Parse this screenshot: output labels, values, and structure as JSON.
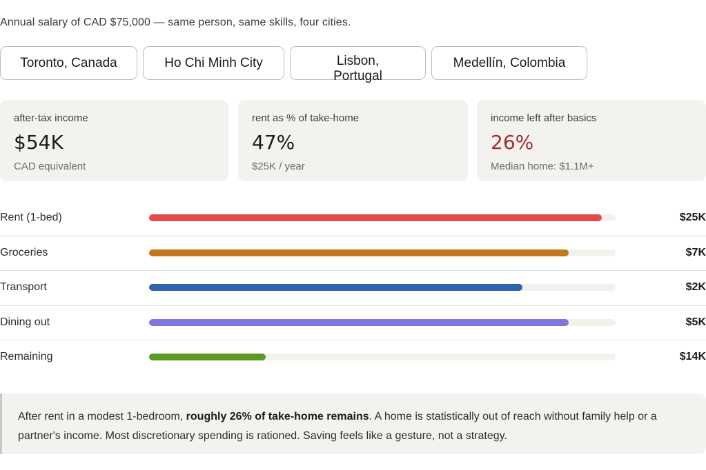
{
  "intro": "Annual salary of CAD $75,000 — same person, same skills, four cities.",
  "cities": [
    {
      "label": "Toronto, Canada"
    },
    {
      "label": "Ho Chi Minh City"
    },
    {
      "label": "Lisbon, Portugal"
    },
    {
      "label": "Medellín, Colombia"
    }
  ],
  "stats": [
    {
      "label": "after-tax income",
      "value": "$54K",
      "sub": "CAD equivalent"
    },
    {
      "label": "rent as % of take-home",
      "value": "47%",
      "sub": "$25K / year"
    },
    {
      "label": "income left after basics",
      "value": "26%",
      "sub": "Median home: $1.1M+",
      "value_color": "#a32d2d"
    }
  ],
  "breakdown": [
    {
      "label": "Rent (1-bed)",
      "value": "$25K",
      "fill": 0.97,
      "color": "#e24b4a"
    },
    {
      "label": "Groceries",
      "value": "$7K",
      "fill": 0.9,
      "color": "#c2771a"
    },
    {
      "label": "Transport",
      "value": "$2K",
      "fill": 0.8,
      "color": "#2f63ad"
    },
    {
      "label": "Dining out",
      "value": "$5K",
      "fill": 0.9,
      "color": "#7f77dd"
    },
    {
      "label": "Remaining",
      "value": "$14K",
      "fill": 0.25,
      "color": "#5a9a23"
    }
  ],
  "summary": {
    "before": "After rent in a modest 1-bedroom, ",
    "bold": "roughly 26% of take-home remains",
    "after": ". A home is statistically out of reach without family help or a partner's income. Most discretionary spending is rationed. Saving feels like a gesture, not a strategy."
  }
}
